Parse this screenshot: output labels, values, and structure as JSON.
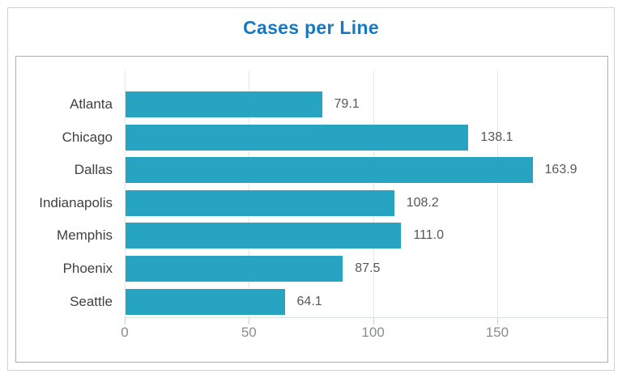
{
  "title": "Cases per Line",
  "chart_data": {
    "type": "bar",
    "orientation": "horizontal",
    "title": "Cases per Line",
    "categories": [
      "Atlanta",
      "Chicago",
      "Dallas",
      "Indianapolis",
      "Memphis",
      "Phoenix",
      "Seattle"
    ],
    "values": [
      79.1,
      138.1,
      163.9,
      108.2,
      111.0,
      87.5,
      64.1
    ],
    "value_labels": [
      "79.1",
      "138.1",
      "163.9",
      "108.2",
      "111.0",
      "87.5",
      "64.1"
    ],
    "xlabel": "",
    "ylabel": "",
    "x_ticks": [
      0,
      50,
      100,
      150
    ],
    "xlim": [
      0,
      195
    ],
    "grid": "vertical",
    "legend": "none"
  },
  "colors": {
    "bar": "#28a4c3",
    "title": "#1778c2",
    "category_label": "#404040",
    "value_label": "#575757",
    "tick_label": "#888d91",
    "gridline": "#e2e7ea",
    "axis_line": "#d8dde0",
    "chart_border": "#a9b0b4",
    "outer_border": "#cbd5d2"
  }
}
